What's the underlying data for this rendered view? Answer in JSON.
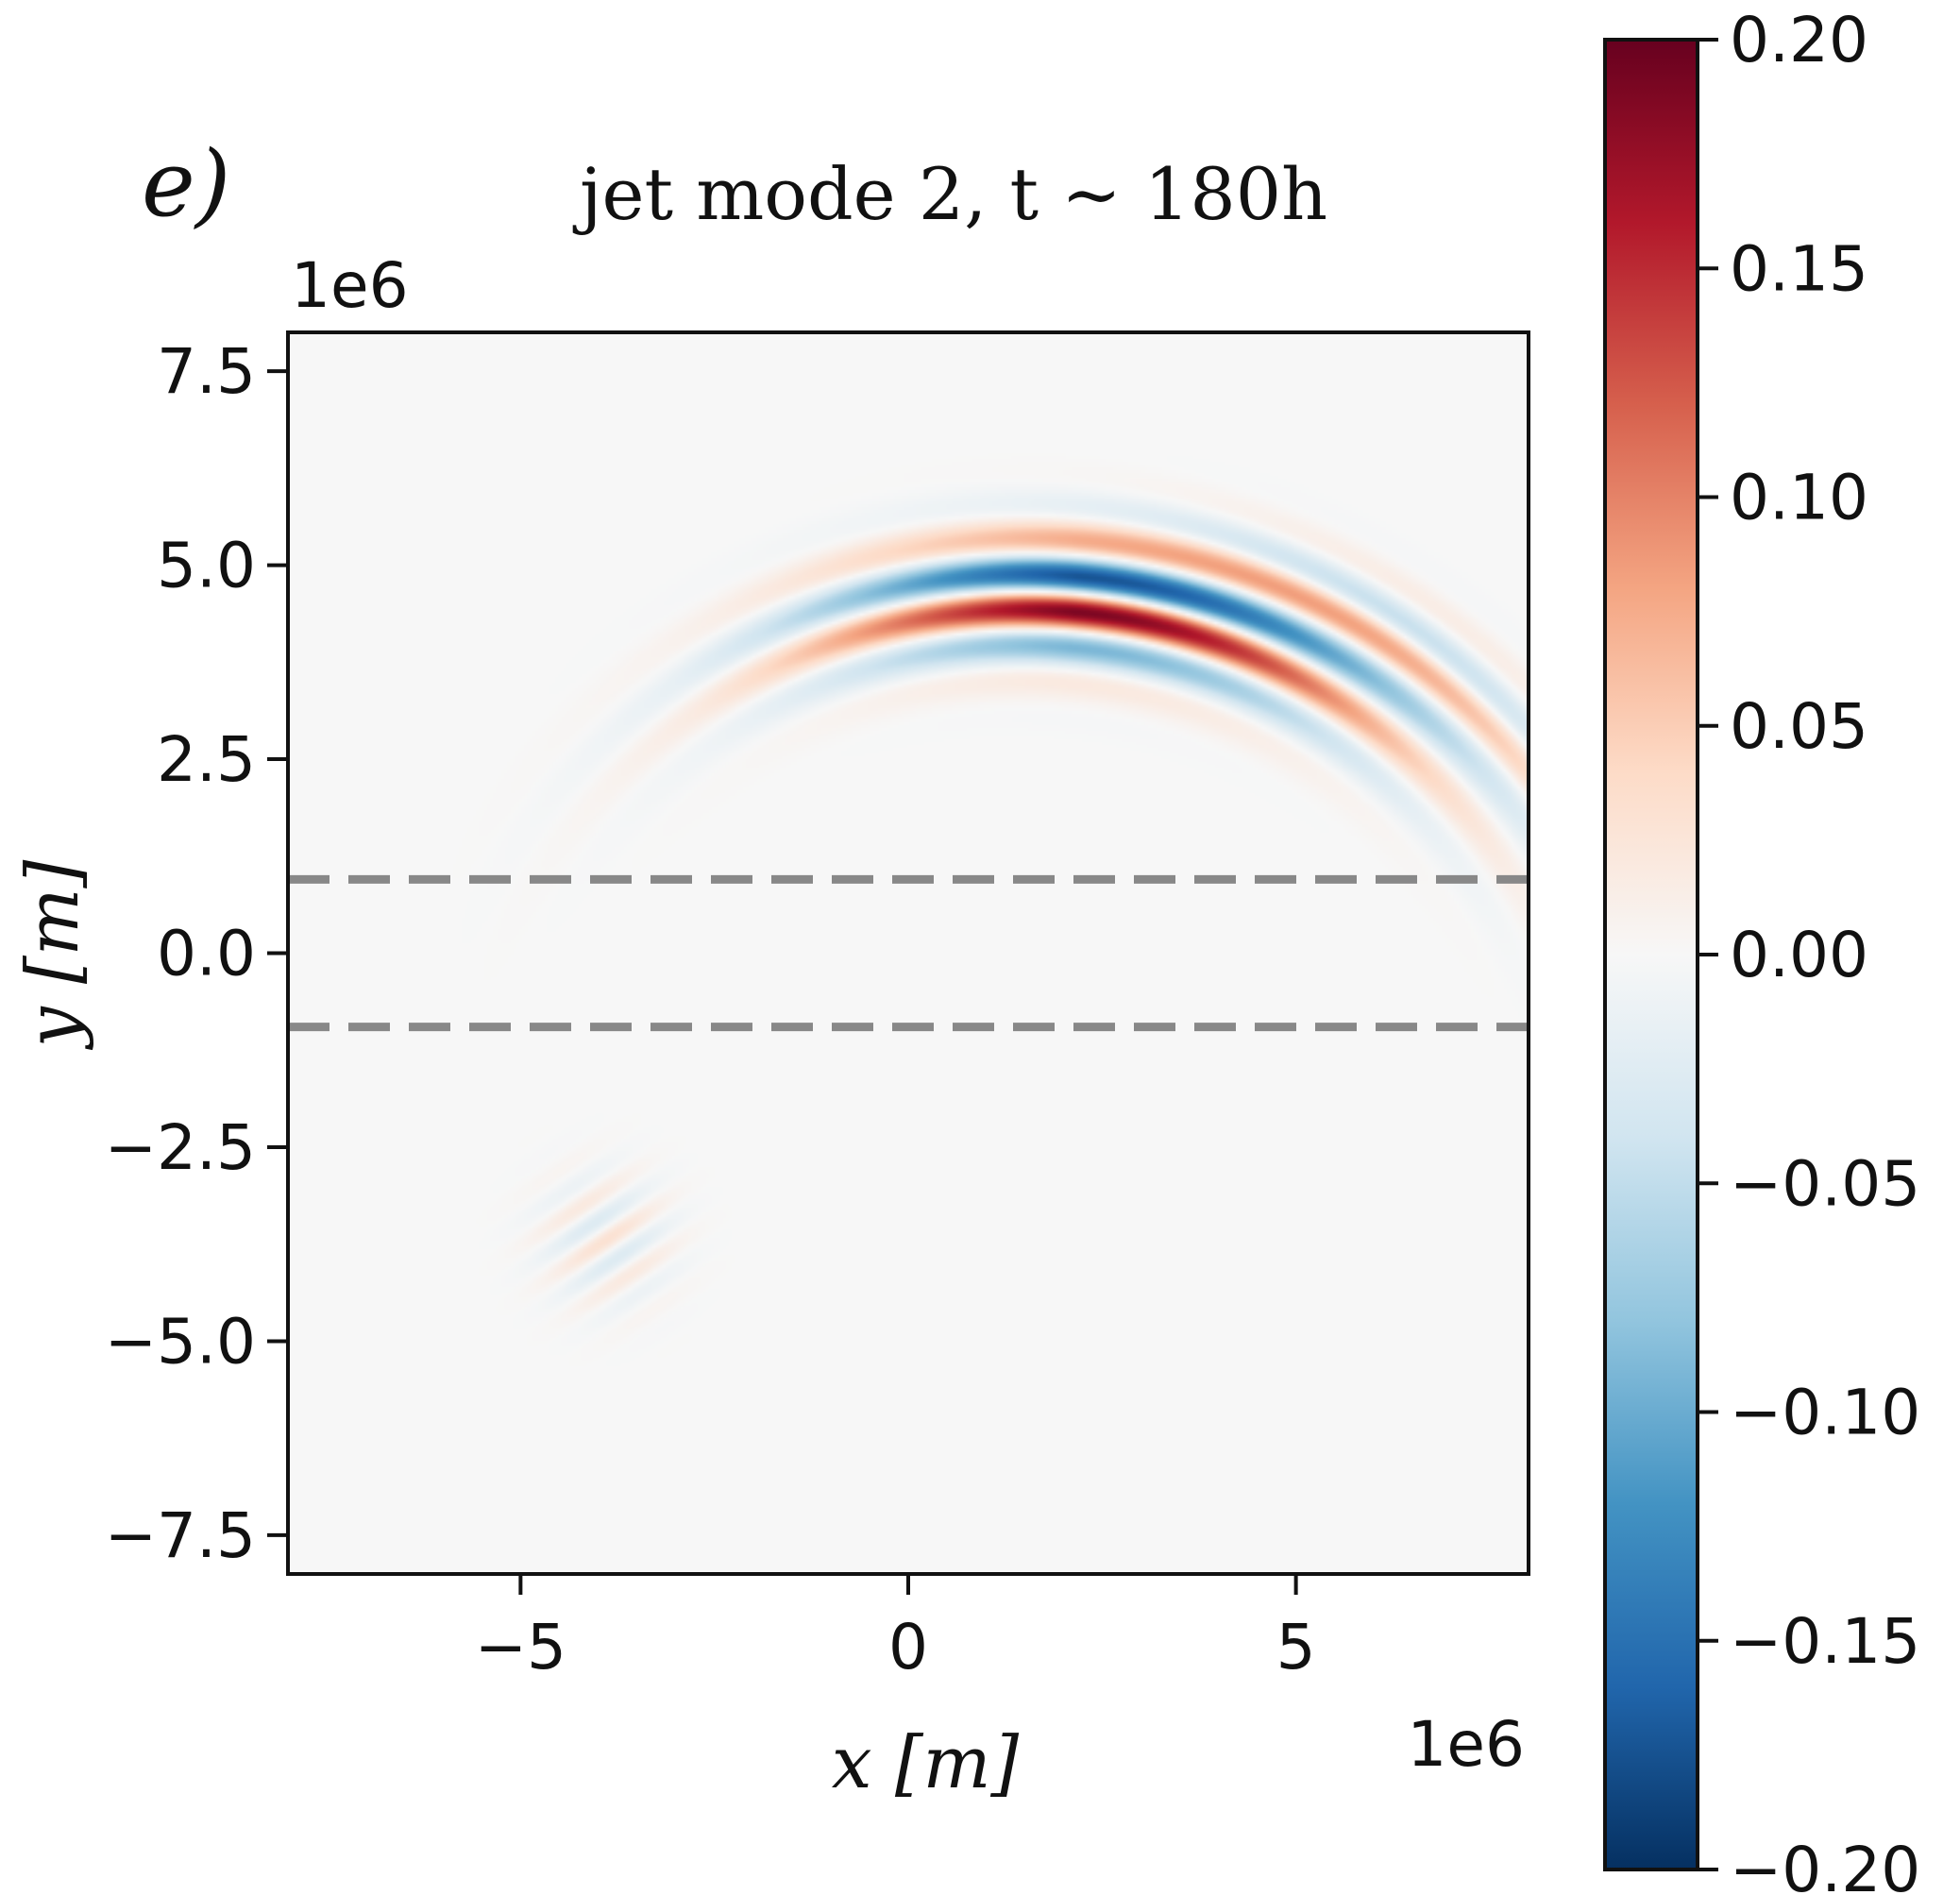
{
  "chart_data": {
    "type": "heatmap",
    "panel_label": "e)",
    "title": "jet mode 2, t ∼ 180h",
    "xlabel": "x [m]",
    "ylabel": "y [m]",
    "x_offset_text": "1e6",
    "y_offset_text": "1e6",
    "xlim": [
      -8,
      8
    ],
    "ylim": [
      -8,
      8
    ],
    "units_scale": 1000000,
    "xticks": [
      {
        "value": -5,
        "label": "−5"
      },
      {
        "value": 0,
        "label": "0"
      },
      {
        "value": 5,
        "label": "5"
      }
    ],
    "yticks": [
      {
        "value": 7.5,
        "label": "7.5"
      },
      {
        "value": 5.0,
        "label": "5.0"
      },
      {
        "value": 2.5,
        "label": "2.5"
      },
      {
        "value": 0.0,
        "label": "0.0"
      },
      {
        "value": -2.5,
        "label": "−2.5"
      },
      {
        "value": -5.0,
        "label": "−5.0"
      },
      {
        "value": -7.5,
        "label": "−7.5"
      }
    ],
    "dashed_lines_y": [
      0.95,
      -0.95
    ],
    "dashed_line_color": "#888888",
    "colorbar": {
      "vmin": -0.2,
      "vmax": 0.2,
      "colormap": "RdBu_r",
      "ticks": [
        {
          "value": 0.2,
          "label": "0.20"
        },
        {
          "value": 0.15,
          "label": "0.15"
        },
        {
          "value": 0.1,
          "label": "0.10"
        },
        {
          "value": 0.05,
          "label": "0.05"
        },
        {
          "value": 0.0,
          "label": "0.00"
        },
        {
          "value": -0.05,
          "label": "−0.05"
        },
        {
          "value": -0.1,
          "label": "−0.10"
        },
        {
          "value": -0.15,
          "label": "−0.15"
        },
        {
          "value": -0.2,
          "label": "−0.20"
        }
      ],
      "stops": [
        "#053061",
        "#2166ac",
        "#4393c3",
        "#92c5de",
        "#d1e5f0",
        "#f7f7f7",
        "#fddbc7",
        "#f4a582",
        "#d6604d",
        "#b2182b",
        "#67001f"
      ]
    },
    "field_description": "wave packets along an arc centred near (1.5e6, -3e6) in data units of 1e6 m",
    "wave_packets": [
      {
        "name": "main packet",
        "arc_center": [
          1.5,
          -3.0
        ],
        "radius": 7.6,
        "center_angle_deg": 85,
        "angle_width_deg": 32,
        "amplitude": 0.2,
        "wavelength": 1.0,
        "radial_width": 0.75
      },
      {
        "name": "weak packet",
        "center": [
          -3.9,
          -3.7
        ],
        "amplitude": 0.03,
        "wavelength": 0.55,
        "width": 0.8
      }
    ]
  }
}
